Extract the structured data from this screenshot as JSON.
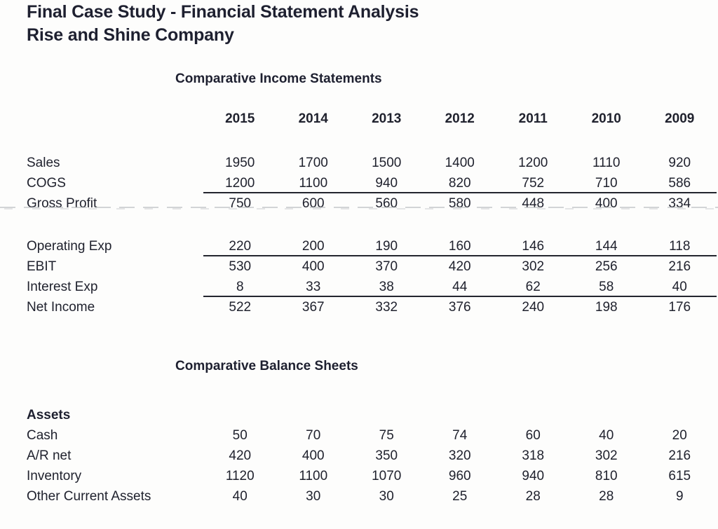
{
  "document": {
    "title_line1": "Final Case Study - Financial Statement Analysis",
    "title_line2": "Rise and Shine Company"
  },
  "income_statement": {
    "heading": "Comparative Income Statements",
    "years": [
      "2015",
      "2014",
      "2013",
      "2012",
      "2011",
      "2010",
      "2009"
    ],
    "rows": [
      {
        "label": "Sales",
        "values": [
          "1950",
          "1700",
          "1500",
          "1400",
          "1200",
          "1110",
          "920"
        ],
        "rule_below": false,
        "spacer_after": false
      },
      {
        "label": "COGS",
        "values": [
          "1200",
          "1100",
          "940",
          "820",
          "752",
          "710",
          "586"
        ],
        "rule_below": true,
        "spacer_after": false
      },
      {
        "label": "Gross Profit",
        "values": [
          "750",
          "600",
          "560",
          "580",
          "448",
          "400",
          "334"
        ],
        "rule_below": false,
        "spacer_after": true
      },
      {
        "label": "Operating Exp",
        "values": [
          "220",
          "200",
          "190",
          "160",
          "146",
          "144",
          "118"
        ],
        "rule_below": true,
        "spacer_after": false
      },
      {
        "label": "EBIT",
        "values": [
          "530",
          "400",
          "370",
          "420",
          "302",
          "256",
          "216"
        ],
        "rule_below": false,
        "spacer_after": false
      },
      {
        "label": "Interest Exp",
        "values": [
          "8",
          "33",
          "38",
          "44",
          "62",
          "58",
          "40"
        ],
        "rule_below": true,
        "spacer_after": false
      },
      {
        "label": "Net Income",
        "values": [
          "522",
          "367",
          "332",
          "376",
          "240",
          "198",
          "176"
        ],
        "rule_below": false,
        "spacer_after": false
      }
    ]
  },
  "balance_sheet": {
    "heading": "Comparative Balance Sheets",
    "section_label": "Assets",
    "rows": [
      {
        "label": "Cash",
        "values": [
          "50",
          "70",
          "75",
          "74",
          "60",
          "40",
          "20"
        ]
      },
      {
        "label": "A/R net",
        "values": [
          "420",
          "400",
          "350",
          "320",
          "318",
          "302",
          "216"
        ]
      },
      {
        "label": "Inventory",
        "values": [
          "1120",
          "1100",
          "1070",
          "960",
          "940",
          "810",
          "615"
        ]
      },
      {
        "label": "Other Current Assets",
        "values": [
          "40",
          "30",
          "30",
          "25",
          "28",
          "28",
          "9"
        ]
      }
    ]
  },
  "colors": {
    "text": "#20222e",
    "rule": "#23252e",
    "artifact": "#d6d8d9"
  }
}
